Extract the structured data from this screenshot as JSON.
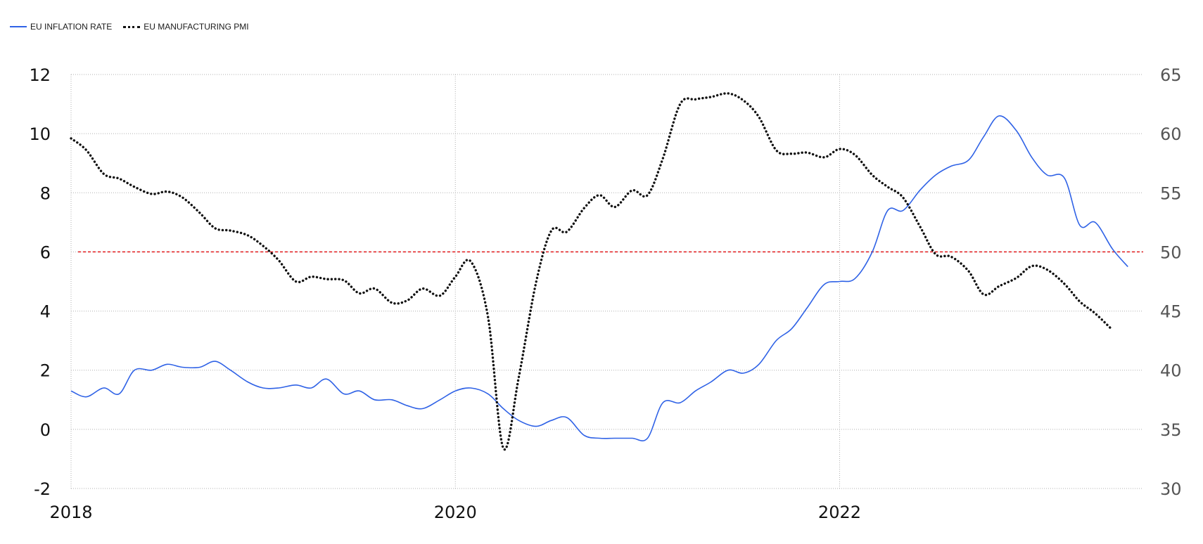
{
  "chart_data": {
    "type": "line",
    "title": "",
    "xlabel": "",
    "ylabel": "",
    "legend_position": "top-left",
    "grid": true,
    "xlim": [
      2018.0,
      2023.58
    ],
    "x_ticks": [
      {
        "value": 2018,
        "label": "2018"
      },
      {
        "value": 2020,
        "label": "2020"
      },
      {
        "value": 2022,
        "label": "2022"
      }
    ],
    "y_left": {
      "range": [
        -2,
        12
      ],
      "ticks": [
        -2,
        0,
        2,
        4,
        6,
        8,
        10,
        12
      ]
    },
    "y_right": {
      "range": [
        30,
        65
      ],
      "ticks": [
        30,
        35,
        40,
        45,
        50,
        55,
        60,
        65
      ]
    },
    "reference_line": {
      "axis": "left",
      "value": 6,
      "color": "#e31a1c"
    },
    "series": [
      {
        "name": "EU INFLATION RATE",
        "axis": "left",
        "color": "#2f62e6",
        "style": "solid",
        "points": [
          [
            2018.0,
            1.3
          ],
          [
            2018.08,
            1.1
          ],
          [
            2018.17,
            1.4
          ],
          [
            2018.25,
            1.2
          ],
          [
            2018.33,
            2.0
          ],
          [
            2018.42,
            2.0
          ],
          [
            2018.5,
            2.2
          ],
          [
            2018.58,
            2.1
          ],
          [
            2018.67,
            2.1
          ],
          [
            2018.75,
            2.3
          ],
          [
            2018.83,
            2.0
          ],
          [
            2018.92,
            1.6
          ],
          [
            2019.0,
            1.4
          ],
          [
            2019.08,
            1.4
          ],
          [
            2019.17,
            1.5
          ],
          [
            2019.25,
            1.4
          ],
          [
            2019.33,
            1.7
          ],
          [
            2019.42,
            1.2
          ],
          [
            2019.5,
            1.3
          ],
          [
            2019.58,
            1.0
          ],
          [
            2019.67,
            1.0
          ],
          [
            2019.75,
            0.8
          ],
          [
            2019.83,
            0.7
          ],
          [
            2019.92,
            1.0
          ],
          [
            2020.0,
            1.3
          ],
          [
            2020.08,
            1.4
          ],
          [
            2020.17,
            1.2
          ],
          [
            2020.25,
            0.7
          ],
          [
            2020.33,
            0.3
          ],
          [
            2020.42,
            0.1
          ],
          [
            2020.5,
            0.3
          ],
          [
            2020.58,
            0.4
          ],
          [
            2020.67,
            -0.2
          ],
          [
            2020.75,
            -0.3
          ],
          [
            2020.83,
            -0.3
          ],
          [
            2020.92,
            -0.3
          ],
          [
            2021.0,
            -0.3
          ],
          [
            2021.08,
            0.9
          ],
          [
            2021.17,
            0.9
          ],
          [
            2021.25,
            1.3
          ],
          [
            2021.33,
            1.6
          ],
          [
            2021.42,
            2.0
          ],
          [
            2021.5,
            1.9
          ],
          [
            2021.58,
            2.2
          ],
          [
            2021.67,
            3.0
          ],
          [
            2021.75,
            3.4
          ],
          [
            2021.83,
            4.1
          ],
          [
            2021.92,
            4.9
          ],
          [
            2022.0,
            5.0
          ],
          [
            2022.08,
            5.1
          ],
          [
            2022.17,
            6.0
          ],
          [
            2022.25,
            7.4
          ],
          [
            2022.33,
            7.4
          ],
          [
            2022.42,
            8.1
          ],
          [
            2022.5,
            8.6
          ],
          [
            2022.58,
            8.9
          ],
          [
            2022.67,
            9.1
          ],
          [
            2022.75,
            9.9
          ],
          [
            2022.83,
            10.6
          ],
          [
            2022.92,
            10.1
          ],
          [
            2023.0,
            9.2
          ],
          [
            2023.08,
            8.6
          ],
          [
            2023.17,
            8.5
          ],
          [
            2023.25,
            6.9
          ],
          [
            2023.33,
            7.0
          ],
          [
            2023.42,
            6.1
          ],
          [
            2023.5,
            5.5
          ]
        ]
      },
      {
        "name": "EU MANUFACTURING PMI",
        "axis": "right",
        "color": "#111111",
        "style": "dotted",
        "points": [
          [
            2018.0,
            59.6
          ],
          [
            2018.08,
            58.6
          ],
          [
            2018.17,
            56.6
          ],
          [
            2018.25,
            56.2
          ],
          [
            2018.33,
            55.5
          ],
          [
            2018.42,
            54.9
          ],
          [
            2018.5,
            55.1
          ],
          [
            2018.58,
            54.6
          ],
          [
            2018.67,
            53.3
          ],
          [
            2018.75,
            52.0
          ],
          [
            2018.83,
            51.8
          ],
          [
            2018.92,
            51.4
          ],
          [
            2019.0,
            50.5
          ],
          [
            2019.08,
            49.3
          ],
          [
            2019.17,
            47.5
          ],
          [
            2019.25,
            47.9
          ],
          [
            2019.33,
            47.7
          ],
          [
            2019.42,
            47.6
          ],
          [
            2019.5,
            46.5
          ],
          [
            2019.58,
            46.9
          ],
          [
            2019.67,
            45.7
          ],
          [
            2019.75,
            45.9
          ],
          [
            2019.83,
            46.9
          ],
          [
            2019.92,
            46.3
          ],
          [
            2020.0,
            47.9
          ],
          [
            2020.08,
            49.2
          ],
          [
            2020.17,
            44.5
          ],
          [
            2020.25,
            33.4
          ],
          [
            2020.33,
            39.4
          ],
          [
            2020.42,
            47.4
          ],
          [
            2020.5,
            51.8
          ],
          [
            2020.58,
            51.7
          ],
          [
            2020.67,
            53.7
          ],
          [
            2020.75,
            54.8
          ],
          [
            2020.83,
            53.8
          ],
          [
            2020.92,
            55.2
          ],
          [
            2021.0,
            54.8
          ],
          [
            2021.08,
            57.9
          ],
          [
            2021.17,
            62.5
          ],
          [
            2021.25,
            62.9
          ],
          [
            2021.33,
            63.1
          ],
          [
            2021.42,
            63.4
          ],
          [
            2021.5,
            62.8
          ],
          [
            2021.58,
            61.4
          ],
          [
            2021.67,
            58.6
          ],
          [
            2021.75,
            58.3
          ],
          [
            2021.83,
            58.4
          ],
          [
            2021.92,
            58.0
          ],
          [
            2022.0,
            58.7
          ],
          [
            2022.08,
            58.2
          ],
          [
            2022.17,
            56.5
          ],
          [
            2022.25,
            55.5
          ],
          [
            2022.33,
            54.6
          ],
          [
            2022.42,
            52.1
          ],
          [
            2022.5,
            49.8
          ],
          [
            2022.58,
            49.6
          ],
          [
            2022.67,
            48.4
          ],
          [
            2022.75,
            46.4
          ],
          [
            2022.83,
            47.1
          ],
          [
            2022.92,
            47.8
          ],
          [
            2023.0,
            48.8
          ],
          [
            2023.08,
            48.5
          ],
          [
            2023.17,
            47.3
          ],
          [
            2023.25,
            45.8
          ],
          [
            2023.33,
            44.8
          ],
          [
            2023.42,
            43.4
          ]
        ]
      }
    ]
  }
}
